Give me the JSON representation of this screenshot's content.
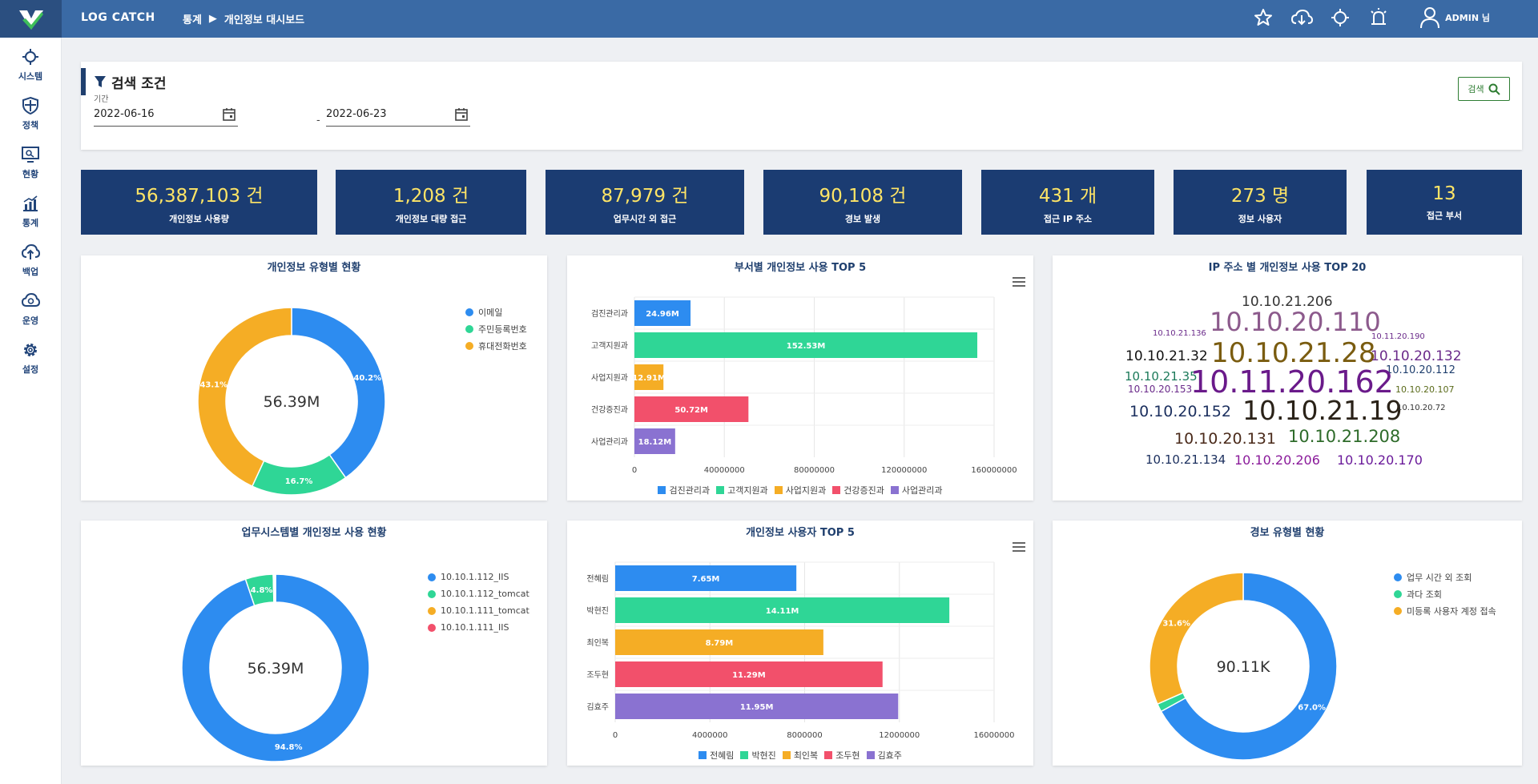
{
  "header": {
    "brand": "LOG  CATCH",
    "breadcrumb": [
      "통계",
      "개인정보 대시보드"
    ],
    "user": "ADMIN 님",
    "icons": [
      "star-icon",
      "cloud-download-icon",
      "target-icon",
      "alarm-icon",
      "user-icon"
    ]
  },
  "sidebar": {
    "items": [
      {
        "label": "시스템",
        "icon": "target-icon"
      },
      {
        "label": "정책",
        "icon": "shield-icon"
      },
      {
        "label": "현황",
        "icon": "monitor-icon"
      },
      {
        "label": "통계",
        "icon": "chart-icon"
      },
      {
        "label": "백업",
        "icon": "cloud-upload-icon"
      },
      {
        "label": "운영",
        "icon": "cloud-gear-icon"
      },
      {
        "label": "설정",
        "icon": "gear-icon"
      }
    ]
  },
  "search": {
    "title": "검색 조건",
    "period_label": "기간",
    "start_date": "2022-06-16",
    "separator": "-",
    "end_date": "2022-06-23",
    "button": "검색"
  },
  "stats": [
    {
      "value": "56,387,103 건",
      "label": "개인정보 사용량"
    },
    {
      "value": "1,208 건",
      "label": "개인정보 대량 접근"
    },
    {
      "value": "87,979 건",
      "label": "업무시간 외 접근"
    },
    {
      "value": "90,108 건",
      "label": "경보 발생"
    },
    {
      "value": "431 개",
      "label": "접근 IP 주소"
    },
    {
      "value": "273 명",
      "label": "정보 사용자"
    },
    {
      "value": "13",
      "label": "접근 부서"
    }
  ],
  "colors": {
    "blue": "#2d8cf0",
    "green": "#2fd696",
    "orange": "#f5ad25",
    "red": "#f2506b",
    "purple": "#8a72d1",
    "header": "#3a6aa5",
    "stat_bg": "#1b3c72"
  },
  "chart_data": [
    {
      "type": "pie",
      "title": "개인정보 유형별 현황",
      "center_label": "56.39M",
      "legend_position": "right",
      "categories": [
        "이메일",
        "주민등록번호",
        "휴대전화번호"
      ],
      "values": [
        40.2,
        16.7,
        43.1
      ],
      "value_labels": [
        "40.2%",
        "16.7%",
        "43.1%"
      ]
    },
    {
      "type": "bar",
      "orientation": "horizontal",
      "title": "부서별 개인정보 사용 TOP 5",
      "categories": [
        "검진관리과",
        "고객지원과",
        "사업지원과",
        "건강증진과",
        "사업관리과"
      ],
      "values": [
        24960000,
        152530000,
        12910000,
        50720000,
        18120000
      ],
      "value_labels": [
        "24.96M",
        "152.53M",
        "12.91M",
        "50.72M",
        "18.12M"
      ],
      "xlim": [
        0,
        160000000
      ],
      "ticks": [
        "0",
        "40000000",
        "80000000",
        "120000000",
        "160000000"
      ],
      "legend_position": "bottom"
    },
    {
      "type": "other",
      "title": "IP 주소 별 개인정보 사용 TOP 20",
      "words": [
        "10.10.21.206",
        "10.10.20.110",
        "10.10.21.136",
        "10.11.20.190",
        "10.10.21.32",
        "10.10.21.28",
        "10.10.20.132",
        "10.10.21.35",
        "10.10.20.112",
        "10.10.20.153",
        "10.11.20.162",
        "10.10.20.107",
        "10.10.20.152",
        "10.10.21.19",
        "10.10.20.72",
        "10.10.20.131",
        "10.10.21.208",
        "10.10.21.134",
        "10.10.20.206",
        "10.10.20.170"
      ]
    },
    {
      "type": "pie",
      "title": "업무시스템별 개인정보 사용 현황",
      "center_label": "56.39M",
      "legend_position": "right",
      "categories": [
        "10.10.1.112_IIS",
        "10.10.1.112_tomcat",
        "10.10.1.111_tomcat",
        "10.10.1.111_IIS"
      ],
      "values": [
        94.8,
        4.8,
        0.2,
        0.2
      ],
      "value_labels": [
        "94.8%",
        "4.8%",
        "",
        ""
      ]
    },
    {
      "type": "bar",
      "orientation": "horizontal",
      "title": "개인정보 사용자 TOP 5",
      "categories": [
        "전혜림",
        "박현진",
        "최인복",
        "조두현",
        "김효주"
      ],
      "values": [
        7650000,
        14110000,
        8790000,
        11290000,
        11950000
      ],
      "value_labels": [
        "7.65M",
        "14.11M",
        "8.79M",
        "11.29M",
        "11.95M"
      ],
      "xlim": [
        0,
        16000000
      ],
      "ticks": [
        "0",
        "4000000",
        "8000000",
        "12000000",
        "16000000"
      ],
      "legend_position": "bottom"
    },
    {
      "type": "pie",
      "title": "경보 유형별 현황",
      "center_label": "90.11K",
      "legend_position": "right",
      "categories": [
        "업무 시간 외 조회",
        "과다 조회",
        "미등록 사용자 계정 접속"
      ],
      "values": [
        67.0,
        1.4,
        31.6
      ],
      "value_labels": [
        "67.0%",
        "",
        "31.6%"
      ]
    }
  ]
}
